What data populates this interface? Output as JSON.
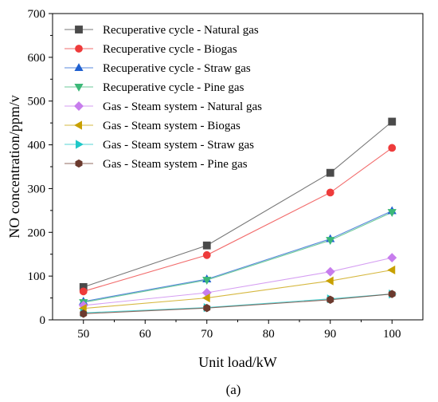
{
  "chart_data": {
    "type": "line",
    "title": "",
    "xlabel": "Unit load/kW",
    "ylabel": "NO concentration/ppm/v",
    "xlim": [
      45,
      105
    ],
    "ylim": [
      0,
      700
    ],
    "xticks": [
      50,
      60,
      70,
      80,
      90,
      100
    ],
    "yticks": [
      0,
      100,
      200,
      300,
      400,
      500,
      600,
      700
    ],
    "grid": false,
    "legend_position": "top-left",
    "x": [
      50,
      70,
      90,
      100
    ],
    "series": [
      {
        "name": "Recuperative cycle - Natural gas",
        "values": [
          75,
          170,
          336,
          453
        ],
        "color": "#4a4a4a",
        "marker": "square"
      },
      {
        "name": "Recuperative cycle - Biogas",
        "values": [
          65,
          148,
          291,
          393
        ],
        "color": "#ee3b3b",
        "marker": "circle"
      },
      {
        "name": "Recuperative cycle - Straw gas",
        "values": [
          42,
          93,
          185,
          249
        ],
        "color": "#2060d0",
        "marker": "triangle-up"
      },
      {
        "name": "Recuperative cycle - Pine gas",
        "values": [
          40,
          91,
          182,
          246
        ],
        "color": "#3cb878",
        "marker": "triangle-down"
      },
      {
        "name": "Gas - Steam system - Natural gas",
        "values": [
          33,
          62,
          110,
          142
        ],
        "color": "#c77ded",
        "marker": "diamond"
      },
      {
        "name": "Gas - Steam system - Biogas",
        "values": [
          26,
          50,
          89,
          114
        ],
        "color": "#c8a000",
        "marker": "triangle-left"
      },
      {
        "name": "Gas - Steam system - Straw gas",
        "values": [
          16,
          28,
          48,
          59
        ],
        "color": "#1ec8c8",
        "marker": "triangle-right"
      },
      {
        "name": "Gas - Steam system - Pine gas",
        "values": [
          14,
          27,
          46,
          59
        ],
        "color": "#6b3a2e",
        "marker": "hexagon"
      }
    ]
  },
  "caption": "(a)"
}
